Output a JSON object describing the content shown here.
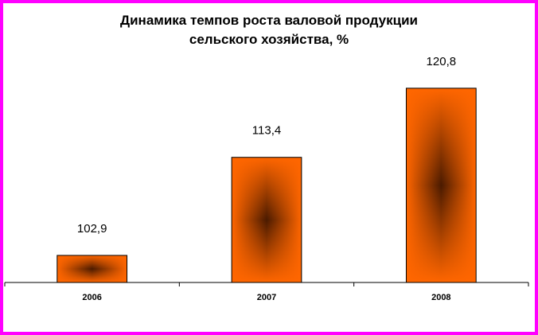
{
  "chart_data": {
    "type": "bar",
    "title_lines": [
      "Динамика темпов роста валовой продукции",
      "сельского хозяйства, %"
    ],
    "categories": [
      "2006",
      "2007",
      "2008"
    ],
    "values": [
      102.9,
      113.4,
      120.8
    ],
    "value_labels": [
      "102,9",
      "113,4",
      "120,8"
    ],
    "xlabel": "",
    "ylabel": "",
    "ylim": [
      100,
      121.3
    ],
    "grid": false,
    "legend": "none",
    "colors": {
      "bar_edge": "#ff6600",
      "bar_center": "#4a1a00",
      "frame": "#ff00ff"
    }
  }
}
